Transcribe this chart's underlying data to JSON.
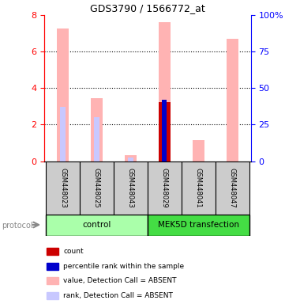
{
  "title": "GDS3790 / 1566772_at",
  "samples": [
    "GSM448023",
    "GSM448025",
    "GSM448043",
    "GSM448029",
    "GSM448041",
    "GSM448047"
  ],
  "group_labels": [
    "control",
    "MEK5D transfection"
  ],
  "value_absent": [
    7.25,
    3.45,
    0.32,
    null,
    1.15,
    6.7
  ],
  "rank_absent_pct": [
    37.0,
    30.0,
    2.5,
    null,
    null,
    null
  ],
  "count_present": [
    null,
    null,
    null,
    3.25,
    null,
    null
  ],
  "rank_present_pct": [
    null,
    null,
    null,
    42.0,
    null,
    null
  ],
  "pink_bars_for": [
    0,
    1,
    2,
    3,
    4,
    5
  ],
  "ylim_left": [
    0,
    8
  ],
  "ylim_right": [
    0,
    100
  ],
  "yticks_left": [
    0,
    2,
    4,
    6,
    8
  ],
  "yticks_right": [
    0,
    25,
    50,
    75,
    100
  ],
  "ytick_labels_right": [
    "0",
    "25",
    "50",
    "75",
    "100%"
  ],
  "bar_color_absent_value": "#ffb3b3",
  "bar_color_absent_rank": "#c8c8ff",
  "bar_color_present_count": "#cc0000",
  "bar_color_present_rank": "#0000cc",
  "group_color_control": "#aaffaa",
  "group_color_mek": "#44dd44",
  "legend_items": [
    {
      "label": "count",
      "color": "#cc0000"
    },
    {
      "label": "percentile rank within the sample",
      "color": "#0000cc"
    },
    {
      "label": "value, Detection Call = ABSENT",
      "color": "#ffb3b3"
    },
    {
      "label": "rank, Detection Call = ABSENT",
      "color": "#c8c8ff"
    }
  ]
}
